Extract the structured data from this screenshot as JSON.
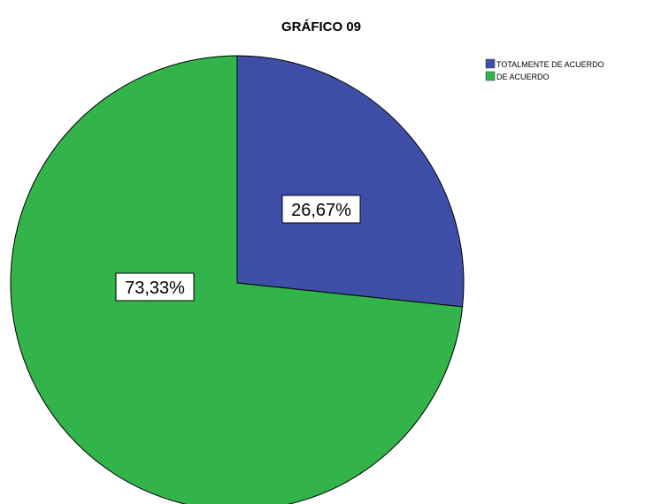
{
  "chart_data": {
    "type": "pie",
    "title": "GRÁFICO 09",
    "legend_position": "top-right",
    "slices": [
      {
        "name": "TOTALMENTE DE ACUERDO",
        "value": 26.67,
        "label": "26,67%",
        "color": "#3f4ea6"
      },
      {
        "name": "DE ACUERDO",
        "value": 73.33,
        "label": "73,33%",
        "color": "#32b44a"
      }
    ]
  }
}
